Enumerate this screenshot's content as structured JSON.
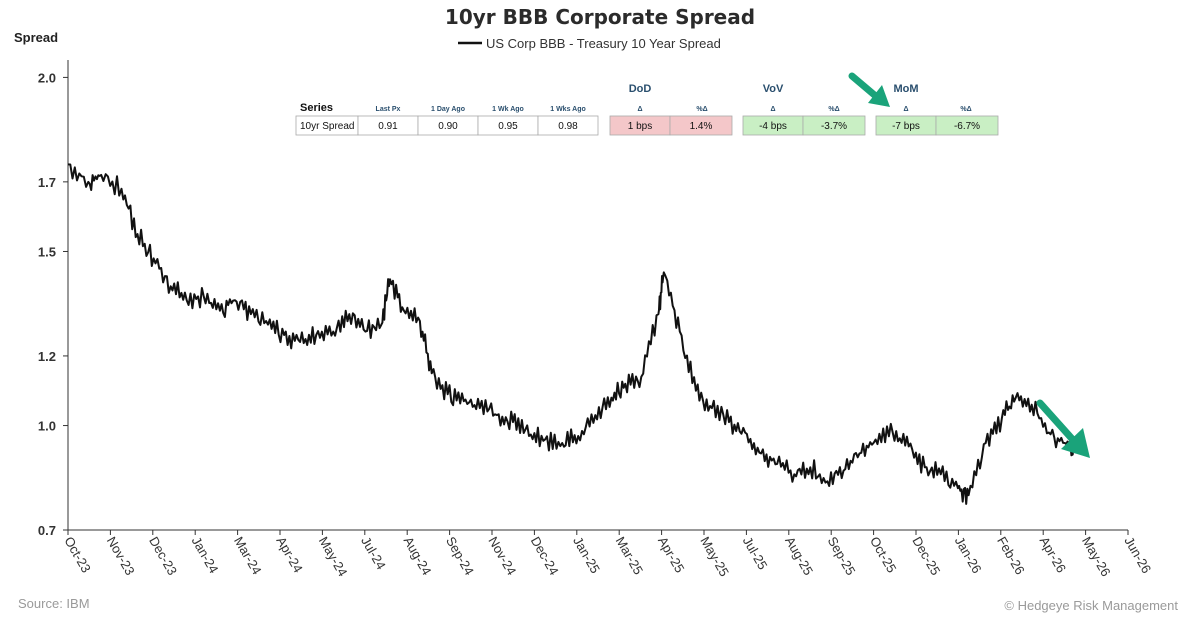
{
  "chart_data": {
    "type": "line",
    "title": "10yr BBB Corporate Spread",
    "ylabel": "Spread",
    "legend": "US Corp BBB - Treasury 10 Year Spread",
    "legend_position": "top-center",
    "grid": false,
    "ylim": [
      0.7,
      2.05
    ],
    "yticks": [
      0.7,
      1.0,
      1.2,
      1.5,
      1.7,
      2.0
    ],
    "xticks": [
      "Oct-23",
      "Nov-23",
      "Dec-23",
      "Jan-24",
      "Mar-24",
      "Apr-24",
      "May-24",
      "Jul-24",
      "Aug-24",
      "Sep-24",
      "Nov-24",
      "Dec-24",
      "Jan-25",
      "Mar-25",
      "Apr-25",
      "May-25",
      "Jul-25",
      "Aug-25",
      "Sep-25",
      "Oct-25",
      "Dec-25",
      "Jan-26",
      "Feb-26",
      "Apr-26",
      "May-26",
      "Jun-26"
    ],
    "series": [
      {
        "name": "US Corp BBB - Treasury 10 Year Spread",
        "x": [
          "2023-10-01",
          "2023-10-20",
          "2023-11-01",
          "2023-11-20",
          "2023-12-05",
          "2023-12-20",
          "2024-01-05",
          "2024-01-20",
          "2024-02-05",
          "2024-02-20",
          "2024-03-05",
          "2024-03-20",
          "2024-04-05",
          "2024-04-20",
          "2024-05-05",
          "2024-05-20",
          "2024-06-05",
          "2024-06-20",
          "2024-07-05",
          "2024-07-20",
          "2024-07-28",
          "2024-08-10",
          "2024-08-25",
          "2024-09-05",
          "2024-09-20",
          "2024-10-05",
          "2024-10-20",
          "2024-11-05",
          "2024-11-20",
          "2024-12-05",
          "2024-12-20",
          "2025-01-05",
          "2025-01-20",
          "2025-02-05",
          "2025-02-20",
          "2025-03-05",
          "2025-03-20",
          "2025-04-05",
          "2025-04-10",
          "2025-04-25",
          "2025-05-10",
          "2025-05-25",
          "2025-06-10",
          "2025-06-25",
          "2025-07-10",
          "2025-07-25",
          "2025-08-10",
          "2025-08-25",
          "2025-09-10",
          "2025-09-25",
          "2025-10-10",
          "2025-10-25",
          "2025-11-10",
          "2025-11-25",
          "2025-12-10",
          "2025-12-25",
          "2026-01-10",
          "2026-01-20",
          "2026-02-05",
          "2026-02-20",
          "2026-03-05",
          "2026-03-20",
          "2026-04-05",
          "2026-04-20",
          "2026-05-01"
        ],
        "y": [
          1.75,
          1.7,
          1.72,
          1.68,
          1.55,
          1.48,
          1.4,
          1.36,
          1.37,
          1.33,
          1.36,
          1.32,
          1.29,
          1.26,
          1.24,
          1.26,
          1.27,
          1.32,
          1.27,
          1.29,
          1.42,
          1.33,
          1.3,
          1.15,
          1.09,
          1.07,
          1.05,
          1.03,
          1.01,
          0.97,
          0.96,
          0.95,
          0.97,
          1.03,
          1.08,
          1.12,
          1.14,
          1.32,
          1.44,
          1.27,
          1.1,
          1.05,
          1.01,
          0.98,
          0.92,
          0.89,
          0.86,
          0.88,
          0.84,
          0.87,
          0.92,
          0.96,
          0.98,
          0.94,
          0.88,
          0.86,
          0.82,
          0.8,
          0.95,
          1.02,
          1.08,
          1.06,
          0.98,
          0.95,
          0.93
        ]
      }
    ],
    "table": {
      "header_series": "Series",
      "columns_small": [
        "Last Px",
        "1 Day Ago",
        "1 Wk Ago",
        "1 Wks Ago"
      ],
      "row_label": "10yr Spread",
      "values": [
        "0.91",
        "0.90",
        "0.95",
        "0.98"
      ],
      "groups": [
        {
          "name": "DoD",
          "col1": "Δ",
          "col2": "%Δ",
          "val1": "1 bps",
          "val2": "1.4%",
          "color": "#f4c7c9"
        },
        {
          "name": "VoV",
          "col1": "Δ",
          "col2": "%Δ",
          "val1": "-4 bps",
          "val2": "-3.7%",
          "color": "#c9efc4"
        },
        {
          "name": "MoM",
          "col1": "Δ",
          "col2": "%Δ",
          "val1": "-7 bps",
          "val2": "-6.7%",
          "color": "#c9efc4"
        }
      ]
    }
  },
  "footer": {
    "source": "Source: IBM",
    "credit": "© Hedgeye Risk Management"
  },
  "colors": {
    "line": "#111111",
    "arrow": "#1aa37a",
    "axis": "#333333"
  }
}
